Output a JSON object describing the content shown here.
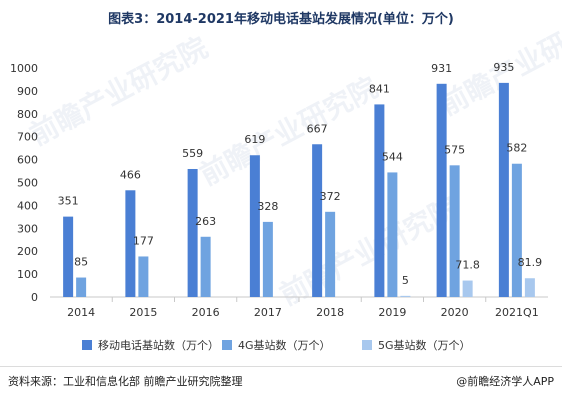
{
  "title": "图表3：2014-2021年移动电话基站发展情况(单位：万个)",
  "source": "资料来源：工业和信息化部 前瞻产业研究院整理",
  "brand": "@前瞻经济学人APP",
  "watermark": "前瞻产业研究院",
  "colors": {
    "mobile": "#4a7fd4",
    "g4": "#6fa3e0",
    "g5": "#a8c8ee",
    "axis": "#c8c8c8",
    "grid": "#e6e6e6",
    "text": "#333333"
  },
  "chart_data": {
    "type": "bar",
    "categories": [
      "2014",
      "2015",
      "2016",
      "2017",
      "2018",
      "2019",
      "2020",
      "2021Q1"
    ],
    "series": [
      {
        "name": "移动电话基站数（万个）",
        "values": [
          351,
          466,
          559,
          619,
          667,
          841,
          931,
          935
        ],
        "labels": [
          "351",
          "466",
          "559",
          "619",
          "667",
          "841",
          "931",
          "935"
        ]
      },
      {
        "name": "4G基站数（万个）",
        "values": [
          85,
          177,
          263,
          328,
          372,
          544,
          575,
          582
        ],
        "labels": [
          "85",
          "177",
          "263",
          "328",
          "372",
          "544",
          "575",
          "582"
        ]
      },
      {
        "name": "5G基站数（万个）",
        "values": [
          null,
          null,
          null,
          null,
          null,
          5,
          71.8,
          81.9
        ],
        "labels": [
          "",
          "",
          "",
          "",
          "",
          "5",
          "71.8",
          "81.9"
        ]
      }
    ],
    "yticks": [
      "0",
      "100",
      "200",
      "300",
      "400",
      "500",
      "600",
      "700",
      "800",
      "900",
      "1000"
    ],
    "ylim": [
      0,
      1000
    ],
    "grid": false,
    "legend_position": "bottom"
  }
}
